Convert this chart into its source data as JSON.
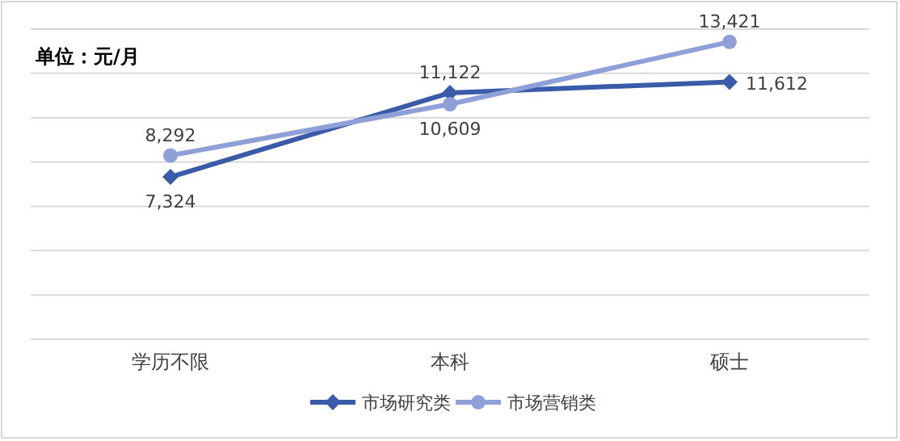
{
  "chart_data": {
    "type": "line",
    "categories": [
      "学历不限",
      "本科",
      "硕士"
    ],
    "series": [
      {
        "name": "市场研究类",
        "color": "#3a5ca8",
        "marker": "diamond",
        "values": [
          7324,
          11122,
          11612
        ],
        "value_labels": [
          "7,324",
          "11,122",
          "11,612"
        ]
      },
      {
        "name": "市场营销类",
        "color": "#8fa0d8",
        "marker": "circle",
        "values": [
          8292,
          10609,
          13421
        ],
        "value_labels": [
          "8,292",
          "10,609",
          "13,421"
        ]
      }
    ],
    "grid": "y",
    "legend": "bottom",
    "tick_labels": "x",
    "annotations": [
      "单位：元/月"
    ]
  }
}
